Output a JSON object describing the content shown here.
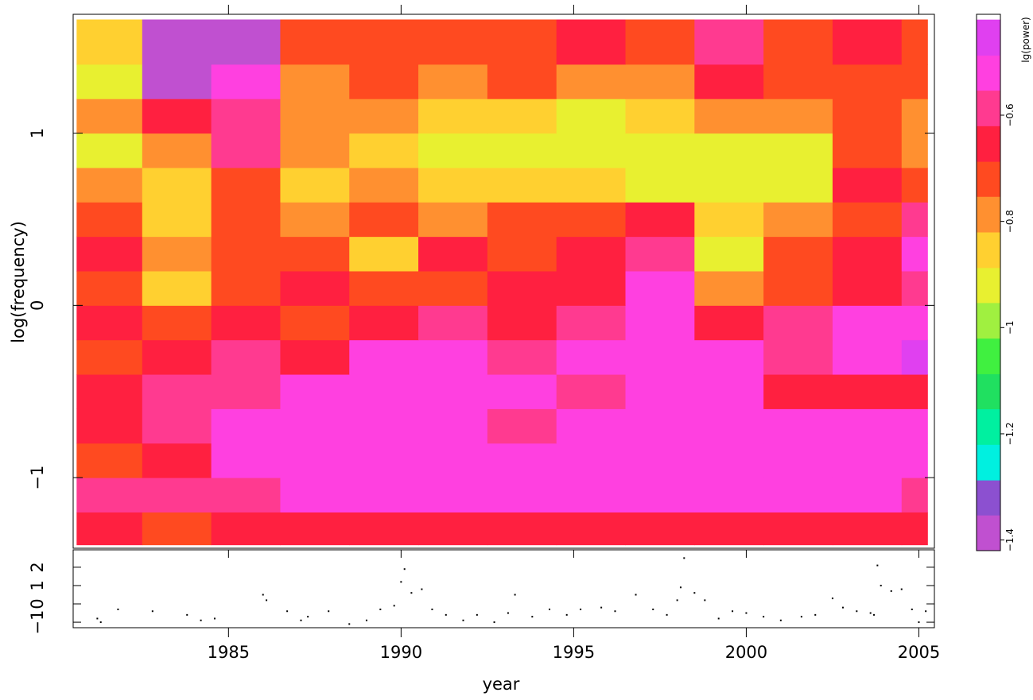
{
  "chart_data": [
    {
      "type": "heatmap",
      "ylabel": "log(frequency)",
      "xlim": [
        1980.5,
        2005.45
      ],
      "ylim": [
        -1.41,
        1.69
      ],
      "yticks": [
        {
          "value": -1,
          "label": "−1"
        },
        0,
        1
      ],
      "x_edges": [
        1980.6,
        1982.5,
        1984.5,
        1986.5,
        1988.5,
        1990.5,
        1992.5,
        1994.5,
        1996.5,
        1998.5,
        2000.5,
        2002.5,
        2004.5,
        2005.25
      ],
      "y_edges": [
        -1.39,
        -1.2,
        -1.0,
        -0.8,
        -0.6,
        -0.4,
        -0.2,
        0,
        0.2,
        0.4,
        0.6,
        0.8,
        1.0,
        1.2,
        1.4,
        1.66
      ],
      "values": [
        [
          -0.64,
          -0.7,
          -0.64,
          -0.64,
          -0.64,
          -0.64,
          -0.64,
          -0.64,
          -0.64,
          -0.64,
          -0.64,
          -0.64,
          -0.64
        ],
        [
          -0.58,
          -0.58,
          -0.58,
          -0.54,
          -0.54,
          -0.54,
          -0.54,
          -0.54,
          -0.54,
          -0.54,
          -0.54,
          -0.54,
          -0.58
        ],
        [
          -0.7,
          -0.64,
          -0.54,
          -0.52,
          -0.51,
          -0.51,
          -0.51,
          -0.5,
          -0.5,
          -0.5,
          -0.51,
          -0.51,
          -0.52
        ],
        [
          -0.64,
          -0.6,
          -0.54,
          -0.52,
          -0.52,
          -0.51,
          -0.58,
          -0.51,
          -0.5,
          -0.5,
          -0.51,
          -0.51,
          -0.52
        ],
        [
          -0.64,
          -0.6,
          -0.58,
          -0.54,
          -0.52,
          -0.52,
          -0.54,
          -0.58,
          -0.5,
          -0.51,
          -0.64,
          -0.64,
          -0.64
        ],
        [
          -0.7,
          -0.64,
          -0.6,
          -0.64,
          -0.54,
          -0.52,
          -0.58,
          -0.54,
          -0.5,
          -0.51,
          -0.6,
          -0.49,
          -0.48
        ],
        [
          -0.64,
          -0.74,
          -0.64,
          -0.7,
          -0.64,
          -0.58,
          -0.64,
          -0.58,
          -0.54,
          -0.64,
          -0.58,
          -0.54,
          -0.52
        ],
        [
          -0.7,
          -0.85,
          -0.7,
          -0.64,
          -0.7,
          -0.7,
          -0.64,
          -0.64,
          -0.54,
          -0.8,
          -0.7,
          -0.64,
          -0.58
        ],
        [
          -0.64,
          -0.8,
          -0.7,
          -0.74,
          -0.85,
          -0.64,
          -0.74,
          -0.64,
          -0.6,
          -0.9,
          -0.74,
          -0.64,
          -0.54
        ],
        [
          -0.74,
          -0.85,
          -0.7,
          -0.8,
          -0.74,
          -0.76,
          -0.7,
          -0.74,
          -0.64,
          -0.85,
          -0.8,
          -0.7,
          -0.58
        ],
        [
          -0.8,
          -0.85,
          -0.74,
          -0.85,
          -0.8,
          -0.85,
          -0.85,
          -0.85,
          -0.9,
          -0.9,
          -0.9,
          -0.64,
          -0.74
        ],
        [
          -0.9,
          -0.76,
          -0.58,
          -0.8,
          -0.85,
          -0.9,
          -0.9,
          -0.92,
          -0.92,
          -0.9,
          -0.9,
          -0.74,
          -0.8
        ],
        [
          -0.76,
          -0.64,
          -0.58,
          -0.8,
          -0.8,
          -0.85,
          -0.85,
          -0.9,
          -0.85,
          -0.8,
          -0.8,
          -0.74,
          -0.76
        ],
        [
          -0.9,
          -1.38,
          -0.54,
          -0.76,
          -0.74,
          -0.76,
          -0.74,
          -0.8,
          -0.76,
          -0.64,
          -0.7,
          -0.7,
          -0.7
        ],
        [
          -0.88,
          -1.38,
          -1.38,
          -0.74,
          -0.7,
          -0.74,
          -0.7,
          -0.64,
          -0.7,
          -0.6,
          -0.7,
          -0.64,
          -0.7
        ]
      ],
      "colorbar": {
        "label": "lg(power)",
        "lim": [
          -1.42,
          -0.41
        ],
        "levels": [
          -1.42,
          -1.353,
          -1.287,
          -1.22,
          -1.153,
          -1.087,
          -1.02,
          -0.953,
          -0.887,
          -0.82,
          -0.753,
          -0.687,
          -0.62,
          -0.553,
          -0.487,
          -0.42
        ],
        "colors": [
          "#c050d0",
          "#8c50d0",
          "#00f0e0",
          "#00f0a0",
          "#20e060",
          "#40f040",
          "#a0f040",
          "#e8f030",
          "#ffd030",
          "#ff9030",
          "#ff4a20",
          "#ff2040",
          "#ff3a90",
          "#ff40e0",
          "#e040f0"
        ],
        "ticks": [
          {
            "value": -1.4,
            "label": "−1.4"
          },
          {
            "value": -1.2,
            "label": "−1.2"
          },
          {
            "value": -1,
            "label": "−1"
          },
          {
            "value": -0.8,
            "label": "−0.8"
          },
          {
            "value": -0.6,
            "label": "−0.6"
          }
        ]
      }
    },
    {
      "type": "scatter",
      "xlabel": "year",
      "xlim": [
        1980.5,
        2005.45
      ],
      "ylim": [
        -1.3,
        2.95
      ],
      "xticks": [
        1985,
        1990,
        1995,
        2000,
        2005
      ],
      "yticks": [
        {
          "value": -1,
          "label": "−1"
        },
        0,
        1,
        2
      ],
      "color": "#000000",
      "x": [
        1981.2,
        1981.3,
        1981.8,
        1982.8,
        1983.8,
        1984.2,
        1984.6,
        1986,
        1986.1,
        1986.7,
        1987.1,
        1987.3,
        1987.9,
        1988.5,
        1989,
        1989.4,
        1989.8,
        1990,
        1990.1,
        1990.3,
        1990.6,
        1990.9,
        1991.3,
        1991.8,
        1992.2,
        1992.7,
        1993.1,
        1993.3,
        1993.8,
        1994.3,
        1994.8,
        1995.2,
        1995.8,
        1996.2,
        1996.8,
        1997.3,
        1997.7,
        1998,
        1998.1,
        1998.2,
        1998.5,
        1998.8,
        1999.2,
        1999.6,
        2000,
        2000.5,
        2001,
        2001.6,
        2002,
        2002.5,
        2002.8,
        2003.2,
        2003.6,
        2003.7,
        2003.8,
        2003.9,
        2004.2,
        2004.5,
        2004.8,
        2005,
        2005.2
      ],
      "values": [
        -0.8,
        -1.0,
        -0.3,
        -0.4,
        -0.6,
        -0.9,
        -0.8,
        0.5,
        0.2,
        -0.4,
        -0.9,
        -0.7,
        -0.4,
        -1.1,
        -0.9,
        -0.3,
        -0.1,
        1.2,
        1.9,
        0.6,
        0.8,
        -0.3,
        -0.6,
        -0.9,
        -0.6,
        -1.0,
        -0.5,
        0.5,
        -0.7,
        -0.3,
        -0.6,
        -0.3,
        -0.2,
        -0.4,
        0.5,
        -0.3,
        -0.6,
        0.2,
        0.9,
        2.5,
        0.6,
        0.2,
        -0.8,
        -0.4,
        -0.5,
        -0.7,
        -0.9,
        -0.7,
        -0.6,
        0.3,
        -0.2,
        -0.4,
        -0.5,
        -0.6,
        2.1,
        1.0,
        0.7,
        0.8,
        -0.3,
        -1.0,
        -0.4
      ]
    }
  ]
}
